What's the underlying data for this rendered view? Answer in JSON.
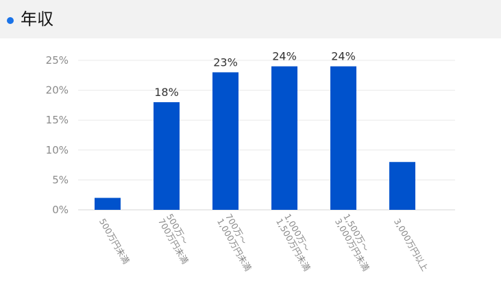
{
  "header": {
    "title": "年収",
    "accent_color": "#1a73e8",
    "icon": "bullet-dot-icon"
  },
  "chart_data": {
    "type": "bar",
    "title": "年収",
    "categories": [
      [
        "500万円未満"
      ],
      [
        "500万〜",
        "700万円未満"
      ],
      [
        "700万〜",
        "1,000万円未満"
      ],
      [
        "1,000万〜",
        "1,500万円未満"
      ],
      [
        "1,500万〜",
        "3,000万円未満"
      ],
      [
        "3,000万円以上"
      ]
    ],
    "values": [
      2,
      18,
      23,
      24,
      24,
      8
    ],
    "data_labels": [
      "",
      "18%",
      "23%",
      "24%",
      "24%",
      ""
    ],
    "y_ticks": [
      "0%",
      "5%",
      "10%",
      "15%",
      "20%",
      "25%"
    ],
    "ylim": [
      0,
      25
    ],
    "bar_color": "#0052cc",
    "grid": true
  }
}
